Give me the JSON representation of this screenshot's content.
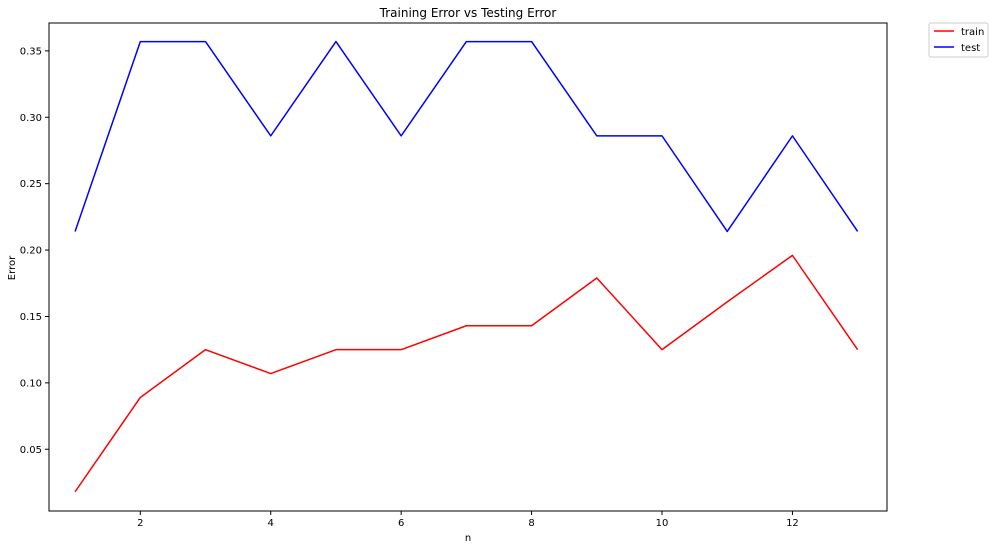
{
  "chart_data": {
    "type": "line",
    "title": "Training Error vs Testing Error",
    "xlabel": "n",
    "ylabel": "Error",
    "x": [
      1,
      2,
      3,
      4,
      5,
      6,
      7,
      8,
      9,
      10,
      11,
      12,
      13
    ],
    "xlim": [
      0.6,
      13.45
    ],
    "ylim": [
      0.0035,
      0.371
    ],
    "xticks": [
      2,
      4,
      6,
      8,
      10,
      12
    ],
    "yticks": [
      0.05,
      0.1,
      0.15,
      0.2,
      0.25,
      0.3,
      0.35
    ],
    "ytick_labels": [
      "0.05",
      "0.10",
      "0.15",
      "0.20",
      "0.25",
      "0.30",
      "0.35"
    ],
    "grid": false,
    "legend_position": "outside-top-right",
    "series": [
      {
        "name": "train",
        "color": "#ff0000",
        "values": [
          0.018,
          0.089,
          0.125,
          0.107,
          0.125,
          0.125,
          0.143,
          0.143,
          0.179,
          0.125,
          0.161,
          0.196,
          0.125
        ]
      },
      {
        "name": "test",
        "color": "#0000ff",
        "values": [
          0.214,
          0.357,
          0.357,
          0.286,
          0.357,
          0.286,
          0.357,
          0.357,
          0.286,
          0.286,
          0.214,
          0.286,
          0.214
        ]
      }
    ]
  }
}
